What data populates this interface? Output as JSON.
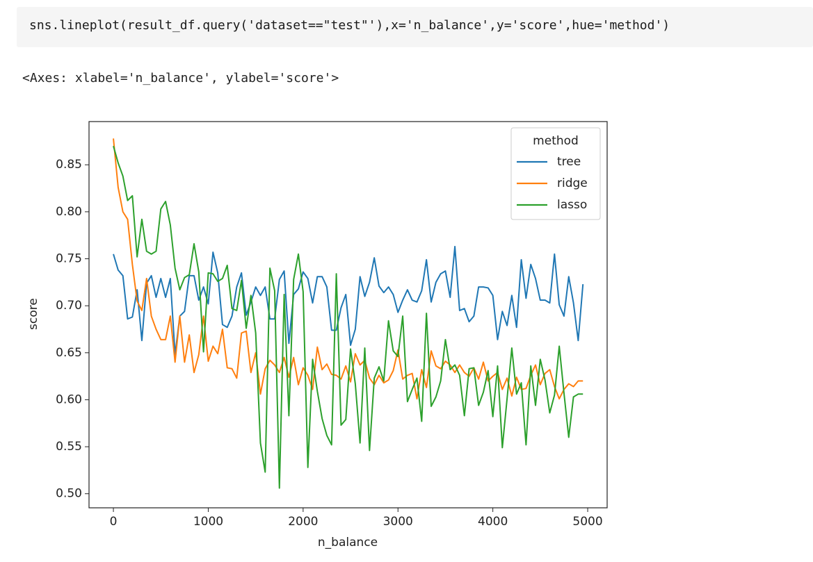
{
  "code": "sns.lineplot(result_df.query('dataset==\"test\"'),x='n_balance',y='score',hue='method')",
  "output": "<Axes: xlabel='n_balance', ylabel='score'>",
  "chart_data": {
    "type": "line",
    "xlabel": "n_balance",
    "ylabel": "score",
    "legend_title": "method",
    "legend": "upper right",
    "xlim": [
      -257,
      5205
    ],
    "ylim": [
      0.485,
      0.896
    ],
    "xticks": [
      0,
      1000,
      2000,
      3000,
      4000,
      5000
    ],
    "yticks": [
      {
        "value": 0.5,
        "label": "0.50"
      },
      0.55,
      {
        "value": 0.6,
        "label": "0.60"
      },
      0.65,
      {
        "value": 0.7,
        "label": "0.70"
      },
      0.75,
      {
        "value": 0.8,
        "label": "0.80"
      },
      0.85
    ],
    "x": [
      0,
      50,
      100,
      150,
      200,
      250,
      300,
      350,
      400,
      450,
      500,
      550,
      600,
      650,
      700,
      750,
      800,
      850,
      900,
      950,
      1000,
      1050,
      1100,
      1150,
      1200,
      1250,
      1300,
      1350,
      1400,
      1450,
      1500,
      1550,
      1600,
      1650,
      1700,
      1750,
      1800,
      1850,
      1900,
      1950,
      2000,
      2050,
      2100,
      2150,
      2200,
      2250,
      2300,
      2350,
      2400,
      2450,
      2500,
      2550,
      2600,
      2650,
      2700,
      2750,
      2800,
      2850,
      2900,
      2950,
      3000,
      3050,
      3100,
      3150,
      3200,
      3250,
      3300,
      3350,
      3400,
      3450,
      3500,
      3550,
      3600,
      3650,
      3700,
      3750,
      3800,
      3850,
      3900,
      3950,
      4000,
      4050,
      4100,
      4150,
      4200,
      4250,
      4300,
      4350,
      4400,
      4450,
      4500,
      4550,
      4600,
      4650,
      4700,
      4750,
      4800,
      4850,
      4900,
      4950
    ],
    "series": [
      {
        "name": "tree",
        "color": "#1f77b4",
        "values": [
          0.755,
          0.738,
          0.732,
          0.686,
          0.688,
          0.717,
          0.663,
          0.724,
          0.732,
          0.709,
          0.729,
          0.709,
          0.729,
          0.648,
          0.689,
          0.694,
          0.732,
          0.732,
          0.706,
          0.72,
          0.702,
          0.757,
          0.735,
          0.68,
          0.677,
          0.689,
          0.72,
          0.735,
          0.69,
          0.704,
          0.72,
          0.711,
          0.72,
          0.686,
          0.686,
          0.728,
          0.737,
          0.66,
          0.712,
          0.718,
          0.736,
          0.729,
          0.703,
          0.731,
          0.731,
          0.72,
          0.674,
          0.674,
          0.698,
          0.712,
          0.658,
          0.675,
          0.731,
          0.71,
          0.725,
          0.751,
          0.721,
          0.714,
          0.72,
          0.712,
          0.693,
          0.706,
          0.717,
          0.706,
          0.704,
          0.716,
          0.749,
          0.704,
          0.725,
          0.734,
          0.737,
          0.709,
          0.763,
          0.695,
          0.697,
          0.683,
          0.689,
          0.72,
          0.72,
          0.719,
          0.711,
          0.664,
          0.694,
          0.679,
          0.711,
          0.677,
          0.749,
          0.708,
          0.744,
          0.729,
          0.706,
          0.706,
          0.703,
          0.755,
          0.701,
          0.689,
          0.731,
          0.703,
          0.663,
          0.723
        ]
      },
      {
        "name": "ridge",
        "color": "#ff7f0e",
        "values": [
          0.878,
          0.826,
          0.8,
          0.792,
          0.744,
          0.705,
          0.695,
          0.729,
          0.689,
          0.675,
          0.664,
          0.664,
          0.689,
          0.64,
          0.689,
          0.64,
          0.669,
          0.629,
          0.648,
          0.689,
          0.641,
          0.657,
          0.649,
          0.675,
          0.634,
          0.633,
          0.623,
          0.671,
          0.673,
          0.629,
          0.65,
          0.606,
          0.633,
          0.642,
          0.637,
          0.629,
          0.645,
          0.624,
          0.645,
          0.616,
          0.634,
          0.626,
          0.611,
          0.656,
          0.632,
          0.638,
          0.627,
          0.626,
          0.622,
          0.636,
          0.619,
          0.649,
          0.637,
          0.642,
          0.623,
          0.616,
          0.626,
          0.618,
          0.621,
          0.631,
          0.653,
          0.622,
          0.626,
          0.628,
          0.601,
          0.632,
          0.613,
          0.652,
          0.636,
          0.633,
          0.641,
          0.637,
          0.629,
          0.637,
          0.629,
          0.625,
          0.634,
          0.622,
          0.64,
          0.62,
          0.625,
          0.629,
          0.611,
          0.623,
          0.604,
          0.624,
          0.611,
          0.612,
          0.626,
          0.637,
          0.616,
          0.628,
          0.632,
          0.614,
          0.601,
          0.611,
          0.617,
          0.614,
          0.62,
          0.62
        ]
      },
      {
        "name": "lasso",
        "color": "#2ca02c",
        "values": [
          0.87,
          0.852,
          0.838,
          0.812,
          0.817,
          0.752,
          0.792,
          0.758,
          0.755,
          0.758,
          0.803,
          0.811,
          0.786,
          0.74,
          0.717,
          0.73,
          0.733,
          0.766,
          0.736,
          0.651,
          0.735,
          0.734,
          0.726,
          0.729,
          0.743,
          0.697,
          0.695,
          0.727,
          0.676,
          0.711,
          0.671,
          0.554,
          0.523,
          0.74,
          0.716,
          0.506,
          0.712,
          0.583,
          0.728,
          0.755,
          0.715,
          0.528,
          0.643,
          0.609,
          0.58,
          0.562,
          0.552,
          0.734,
          0.573,
          0.579,
          0.654,
          0.617,
          0.554,
          0.655,
          0.546,
          0.623,
          0.635,
          0.62,
          0.684,
          0.652,
          0.646,
          0.689,
          0.598,
          0.611,
          0.623,
          0.577,
          0.692,
          0.593,
          0.603,
          0.62,
          0.664,
          0.632,
          0.637,
          0.626,
          0.583,
          0.633,
          0.634,
          0.594,
          0.608,
          0.631,
          0.582,
          0.636,
          0.549,
          0.601,
          0.655,
          0.606,
          0.618,
          0.552,
          0.636,
          0.594,
          0.643,
          0.621,
          0.586,
          0.605,
          0.657,
          0.607,
          0.56,
          0.603,
          0.606,
          0.606
        ]
      }
    ]
  }
}
